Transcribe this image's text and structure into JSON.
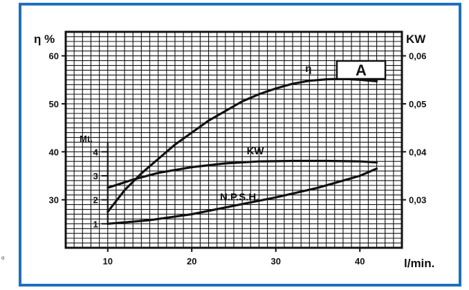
{
  "chart_data": {
    "type": "line",
    "badge": "A",
    "xlabel": "l/min.",
    "ylabel_left": "η %",
    "ylabel_right": "KW",
    "ylabel_mt": "Mt.",
    "xlim": [
      5,
      45
    ],
    "ylim_left": [
      20,
      65
    ],
    "ylim_right": [
      0.02,
      0.065
    ],
    "x_ticks": [
      "10",
      "20",
      "30",
      "40"
    ],
    "x_tick_values": [
      10,
      20,
      30,
      40
    ],
    "y_left_ticks": [
      "30",
      "40",
      "50",
      "60"
    ],
    "y_left_tick_values": [
      30,
      40,
      50,
      60
    ],
    "y_right_ticks": [
      "0,03",
      "0,04",
      "0,05",
      "0,06"
    ],
    "y_right_tick_values": [
      0.03,
      0.04,
      0.05,
      0.06
    ],
    "mt_ticks": [
      "1",
      "2",
      "3",
      "4"
    ],
    "mt_tick_left_values": [
      25,
      30,
      35,
      40
    ],
    "grid": true,
    "series": [
      {
        "name": "η",
        "axis": "left",
        "x": [
          10,
          12,
          14,
          16,
          18,
          20,
          22,
          24,
          26,
          28,
          30,
          32,
          34,
          36,
          38,
          40,
          42
        ],
        "y": [
          27.5,
          32,
          35.5,
          38.5,
          41.5,
          44,
          46.5,
          48.5,
          50.5,
          52,
          53.2,
          54.2,
          54.8,
          55.1,
          55.2,
          55,
          54.7
        ]
      },
      {
        "name": "KW",
        "axis": "right",
        "x": [
          10,
          13,
          16,
          20,
          24,
          28,
          32,
          36,
          40,
          42
        ],
        "y": [
          0.0325,
          0.0342,
          0.0356,
          0.0368,
          0.0376,
          0.038,
          0.0381,
          0.0381,
          0.038,
          0.0378
        ]
      },
      {
        "name": "N.P.S.H.",
        "axis": "mt",
        "x": [
          10,
          15,
          20,
          25,
          30,
          35,
          40,
          42
        ],
        "y": [
          1.0,
          1.15,
          1.4,
          1.75,
          2.1,
          2.5,
          3.0,
          3.3
        ]
      }
    ]
  }
}
